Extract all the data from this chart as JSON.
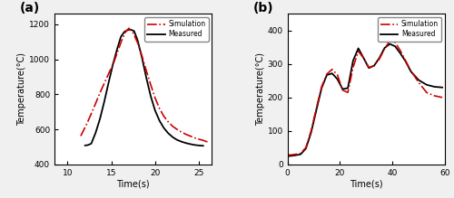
{
  "panel_a": {
    "label": "(a)",
    "xlabel": "Time(s)",
    "ylabel": "Temperature(°C)",
    "xlim": [
      8.5,
      26.5
    ],
    "ylim": [
      400,
      1260
    ],
    "xticks": [
      10,
      15,
      20,
      25
    ],
    "yticks": [
      400,
      600,
      800,
      1000,
      1200
    ],
    "sim_x": [
      11.5,
      12.2,
      12.8,
      13.3,
      13.8,
      14.3,
      14.8,
      15.3,
      15.8,
      16.2,
      16.6,
      17.0,
      17.5,
      18.0,
      18.5,
      19.0,
      19.5,
      20.0,
      20.5,
      21.0,
      21.5,
      22.0,
      22.5,
      23.0,
      23.5,
      24.0,
      24.5,
      25.0,
      25.5,
      26.0
    ],
    "sim_y": [
      562,
      632,
      700,
      760,
      820,
      875,
      930,
      985,
      1055,
      1110,
      1155,
      1178,
      1150,
      1095,
      1020,
      935,
      855,
      780,
      720,
      675,
      643,
      618,
      600,
      585,
      572,
      562,
      552,
      544,
      537,
      528
    ],
    "meas_x": [
      12.0,
      12.3,
      12.7,
      13.2,
      13.7,
      14.2,
      14.7,
      15.2,
      15.7,
      16.1,
      16.5,
      16.9,
      17.2,
      17.6,
      18.0,
      18.5,
      19.0,
      19.5,
      20.0,
      20.5,
      21.0,
      21.5,
      22.0,
      22.5,
      23.0,
      23.5,
      24.0,
      24.5,
      25.0,
      25.5
    ],
    "meas_y": [
      508,
      510,
      518,
      580,
      660,
      760,
      870,
      975,
      1065,
      1130,
      1158,
      1168,
      1170,
      1162,
      1110,
      1010,
      895,
      790,
      708,
      650,
      608,
      578,
      556,
      540,
      530,
      522,
      516,
      511,
      508,
      506
    ],
    "sim_color": "#cc0000",
    "meas_color": "#000000",
    "sim_label": "Simulation",
    "meas_label": "Measured"
  },
  "panel_b": {
    "label": "(b)",
    "xlabel": "Time(s)",
    "ylabel": "Temperature(°C)",
    "xlim": [
      0,
      60
    ],
    "ylim": [
      0,
      450
    ],
    "xticks": [
      0,
      20,
      40,
      60
    ],
    "yticks": [
      0,
      100,
      200,
      300,
      400
    ],
    "sim_x": [
      0,
      1,
      3,
      5,
      7,
      9,
      11,
      13,
      15,
      17,
      19,
      21,
      23,
      25,
      27,
      29,
      31,
      33,
      35,
      37,
      39,
      41,
      43,
      45,
      47,
      50,
      53,
      56,
      59
    ],
    "sim_y": [
      28,
      28,
      30,
      33,
      50,
      100,
      168,
      232,
      270,
      284,
      268,
      222,
      215,
      290,
      338,
      318,
      290,
      295,
      315,
      345,
      370,
      365,
      340,
      310,
      280,
      245,
      215,
      205,
      200
    ],
    "meas_x": [
      0,
      1,
      3,
      5,
      7,
      9,
      11,
      13,
      15,
      17,
      19,
      21,
      23,
      25,
      27,
      29,
      31,
      33,
      35,
      37,
      39,
      41,
      43,
      45,
      47,
      50,
      53,
      56,
      59
    ],
    "meas_y": [
      25,
      25,
      27,
      30,
      47,
      95,
      162,
      228,
      267,
      272,
      255,
      225,
      228,
      310,
      347,
      318,
      288,
      295,
      318,
      348,
      360,
      353,
      332,
      308,
      278,
      252,
      238,
      232,
      230
    ],
    "sim_color": "#cc0000",
    "meas_color": "#000000",
    "sim_label": "Simulation",
    "meas_label": "Measured"
  },
  "fig_background": "#f0f0f0",
  "axes_background": "#ffffff",
  "border_color": "#000000"
}
